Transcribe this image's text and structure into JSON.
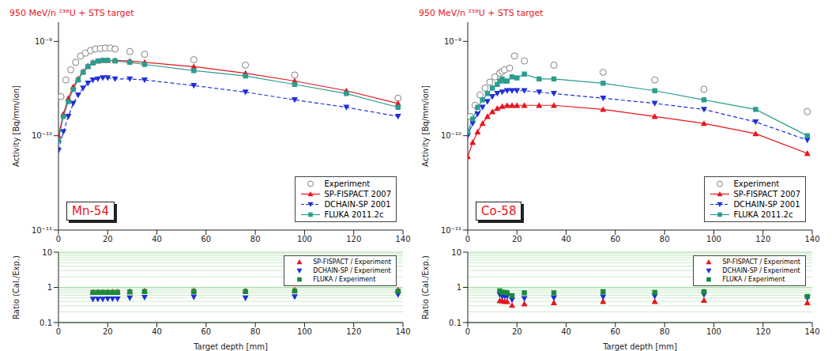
{
  "chart_data": [
    {
      "type": "line",
      "title": "950 MeV/n ²³⁸U + STS target",
      "annotation": "Mn-54",
      "ylabel": "Activity [Bq/mm/ion]",
      "xlim": [
        0,
        140
      ],
      "xticks": [
        0,
        20,
        40,
        60,
        80,
        100,
        120,
        140
      ],
      "ylim": [
        1e-11,
        1.6e-09
      ],
      "yticks": [
        {
          "value": 1e-11,
          "label": "10⁻¹¹"
        },
        {
          "value": 1e-10,
          "label": "10⁻¹⁰"
        },
        {
          "value": 1e-09,
          "label": "10⁻⁹"
        }
      ],
      "log": "y",
      "grid": false,
      "legend": "lower right",
      "series": [
        {
          "name": "Experiment",
          "color": "#808080",
          "marker": "circle",
          "line_style": "none",
          "x": [
            1,
            3,
            5,
            7,
            9,
            11,
            13,
            15,
            17,
            19,
            21,
            23,
            29,
            35,
            55,
            76,
            96,
            138
          ],
          "values": [
            2.6e-10,
            3.9e-10,
            5e-10,
            6e-10,
            7e-10,
            7.5e-10,
            8e-10,
            8.3e-10,
            8.4e-10,
            8.5e-10,
            8.5e-10,
            8.3e-10,
            7.8e-10,
            7.3e-10,
            6.4e-10,
            5.6e-10,
            4.4e-10,
            2.5e-10
          ]
        },
        {
          "name": "SP-FISPACT 2007",
          "color": "#e8141c",
          "marker": "triangle",
          "line_style": "solid",
          "x": [
            0,
            2,
            4,
            6,
            8,
            10,
            12,
            14,
            16,
            18,
            20,
            23,
            29,
            35,
            55,
            76,
            96,
            117,
            138
          ],
          "values": [
            1e-10,
            1.7e-10,
            2.5e-10,
            3.3e-10,
            4e-10,
            4.8e-10,
            5.5e-10,
            6e-10,
            6.2e-10,
            6.3e-10,
            6.3e-10,
            6.3e-10,
            6.2e-10,
            6e-10,
            5.4e-10,
            4.6e-10,
            3.8e-10,
            3e-10,
            2.2e-10
          ]
        },
        {
          "name": "DCHAIN-SP 2001",
          "color": "#1f2fd8",
          "marker": "triangle-down",
          "line_style": "dashed",
          "x": [
            0,
            2,
            4,
            6,
            8,
            10,
            12,
            14,
            16,
            18,
            20,
            23,
            29,
            35,
            55,
            76,
            96,
            117,
            138
          ],
          "values": [
            7e-11,
            1.1e-10,
            1.6e-10,
            2.2e-10,
            2.7e-10,
            3.2e-10,
            3.6e-10,
            3.9e-10,
            4e-10,
            4.1e-10,
            4.1e-10,
            4e-10,
            4e-10,
            3.9e-10,
            3.4e-10,
            2.9e-10,
            2.4e-10,
            2e-10,
            1.6e-10
          ]
        },
        {
          "name": "FLUKA 2011.2c",
          "color": "#2a9d8f",
          "marker": "square",
          "line_style": "solid",
          "x": [
            0,
            2,
            4,
            6,
            8,
            10,
            12,
            14,
            16,
            18,
            20,
            23,
            29,
            35,
            55,
            76,
            96,
            117,
            138
          ],
          "values": [
            9e-11,
            1.6e-10,
            2.3e-10,
            3.1e-10,
            3.9e-10,
            4.7e-10,
            5.4e-10,
            5.9e-10,
            6.2e-10,
            6.3e-10,
            6.3e-10,
            6.2e-10,
            6e-10,
            5.7e-10,
            4.9e-10,
            4.3e-10,
            3.5e-10,
            2.8e-10,
            2e-10
          ]
        }
      ]
    },
    {
      "type": "scatter",
      "xlabel": "Target depth [mm]",
      "ylabel": "Ratio (Cal./Exp.)",
      "xlim": [
        0,
        140
      ],
      "xticks": [
        0,
        20,
        40,
        60,
        80,
        100,
        120,
        140
      ],
      "ylim": [
        0.1,
        10
      ],
      "yticks": [
        0.1,
        1,
        10
      ],
      "log": "y",
      "grid": true,
      "legend": "upper right",
      "series": [
        {
          "name": "SP-FISPACT / Experiment",
          "color": "#e8141c",
          "marker": "triangle",
          "line_style": "none",
          "x": [
            14,
            16,
            18,
            20,
            22,
            24,
            29,
            35,
            55,
            76,
            96,
            138
          ],
          "values": [
            0.72,
            0.73,
            0.73,
            0.73,
            0.74,
            0.75,
            0.77,
            0.8,
            0.82,
            0.8,
            0.84,
            0.85
          ]
        },
        {
          "name": "DCHAIN-SP / Experiment",
          "color": "#1f2fd8",
          "marker": "triangle-down",
          "line_style": "none",
          "x": [
            14,
            16,
            18,
            20,
            22,
            24,
            29,
            35,
            55,
            76,
            96,
            138
          ],
          "values": [
            0.46,
            0.46,
            0.46,
            0.47,
            0.47,
            0.47,
            0.5,
            0.52,
            0.53,
            0.5,
            0.54,
            0.62
          ]
        },
        {
          "name": "FLUKA / Experiment",
          "color": "#1a8a3a",
          "marker": "square",
          "line_style": "none",
          "x": [
            14,
            16,
            18,
            20,
            22,
            24,
            29,
            35,
            55,
            76,
            96,
            138
          ],
          "values": [
            0.72,
            0.72,
            0.72,
            0.72,
            0.72,
            0.72,
            0.74,
            0.76,
            0.76,
            0.76,
            0.79,
            0.78
          ]
        }
      ]
    },
    {
      "type": "line",
      "title": "950 MeV/n ²³⁸U + STS target",
      "annotation": "Co-58",
      "ylabel": "Activity [Bq/mm/ion]",
      "xlim": [
        0,
        140
      ],
      "xticks": [
        0,
        20,
        40,
        60,
        80,
        100,
        120,
        140
      ],
      "ylim": [
        1e-11,
        1.6e-09
      ],
      "yticks": [
        {
          "value": 1e-11,
          "label": "10⁻¹¹"
        },
        {
          "value": 1e-10,
          "label": "10⁻¹⁰"
        },
        {
          "value": 1e-09,
          "label": "10⁻⁹"
        }
      ],
      "log": "y",
      "grid": false,
      "legend": "lower right",
      "series": [
        {
          "name": "Experiment",
          "color": "#808080",
          "marker": "circle",
          "line_style": "none",
          "x": [
            1,
            3,
            5,
            7,
            9,
            11,
            13,
            14,
            15,
            17,
            19,
            23,
            35,
            55,
            76,
            96,
            138
          ],
          "values": [
            1.6e-10,
            2.1e-10,
            2.7e-10,
            3.2e-10,
            3.7e-10,
            4.2e-10,
            4.6e-10,
            4.8e-10,
            5e-10,
            5.2e-10,
            7e-10,
            6.2e-10,
            5.6e-10,
            4.7e-10,
            3.9e-10,
            3.1e-10,
            1.8e-10
          ]
        },
        {
          "name": "SP-FISPACT 2007",
          "color": "#e8141c",
          "marker": "triangle",
          "line_style": "solid",
          "x": [
            0,
            2,
            4,
            6,
            8,
            10,
            12,
            14,
            16,
            18,
            20,
            23,
            29,
            35,
            55,
            76,
            96,
            117,
            138
          ],
          "values": [
            6e-11,
            8.5e-11,
            1.1e-10,
            1.35e-10,
            1.6e-10,
            1.8e-10,
            1.95e-10,
            2.05e-10,
            2.1e-10,
            2.1e-10,
            2.1e-10,
            2.1e-10,
            2.1e-10,
            2.1e-10,
            1.9e-10,
            1.6e-10,
            1.35e-10,
            1.05e-10,
            6.5e-11
          ]
        },
        {
          "name": "DCHAIN-SP 2001",
          "color": "#1f2fd8",
          "marker": "triangle-down",
          "line_style": "dashed",
          "x": [
            0,
            2,
            4,
            6,
            8,
            10,
            12,
            14,
            16,
            18,
            20,
            23,
            29,
            35,
            55,
            76,
            96,
            117,
            138
          ],
          "values": [
            1e-10,
            1.35e-10,
            1.7e-10,
            2e-10,
            2.3e-10,
            2.6e-10,
            2.8e-10,
            2.9e-10,
            3e-10,
            3e-10,
            3e-10,
            3e-10,
            2.9e-10,
            2.8e-10,
            2.5e-10,
            2.2e-10,
            1.9e-10,
            1.4e-10,
            9e-11
          ]
        },
        {
          "name": "FLUKA 2011.2c",
          "color": "#2a9d8f",
          "marker": "square",
          "line_style": "solid",
          "x": [
            0,
            2,
            4,
            6,
            8,
            10,
            12,
            13,
            14,
            15,
            16,
            18,
            20,
            23,
            29,
            35,
            55,
            76,
            96,
            117,
            138
          ],
          "values": [
            1.1e-10,
            1.5e-10,
            2e-10,
            2.4e-10,
            2.8e-10,
            3.2e-10,
            3.5e-10,
            3.8e-10,
            4e-10,
            3.8e-10,
            3.8e-10,
            4.2e-10,
            4.1e-10,
            4.5e-10,
            4e-10,
            4e-10,
            3.6e-10,
            3e-10,
            2.4e-10,
            1.9e-10,
            1e-10
          ]
        }
      ]
    },
    {
      "type": "scatter",
      "xlabel": "Target depth [mm]",
      "ylabel": "Ratio (Cal./Exp.)",
      "xlim": [
        0,
        140
      ],
      "xticks": [
        0,
        20,
        40,
        60,
        80,
        100,
        120,
        140
      ],
      "ylim": [
        0.1,
        10
      ],
      "yticks": [
        0.1,
        1,
        10
      ],
      "log": "y",
      "grid": true,
      "legend": "upper right",
      "series": [
        {
          "name": "SP-FISPACT / Experiment",
          "color": "#e8141c",
          "marker": "triangle",
          "line_style": "none",
          "x": [
            13,
            14,
            15,
            16,
            18,
            23,
            35,
            55,
            76,
            96,
            138
          ],
          "values": [
            0.42,
            0.42,
            0.4,
            0.4,
            0.31,
            0.34,
            0.37,
            0.4,
            0.4,
            0.43,
            0.37
          ]
        },
        {
          "name": "DCHAIN-SP / Experiment",
          "color": "#1f2fd8",
          "marker": "triangle-down",
          "line_style": "none",
          "x": [
            13,
            14,
            15,
            16,
            18,
            23,
            35,
            55,
            76,
            96,
            138
          ],
          "values": [
            0.62,
            0.55,
            0.56,
            0.55,
            0.44,
            0.48,
            0.5,
            0.53,
            0.56,
            0.62,
            0.5
          ]
        },
        {
          "name": "FLUKA / Experiment",
          "color": "#1a8a3a",
          "marker": "square",
          "line_style": "none",
          "x": [
            13,
            14,
            15,
            16,
            18,
            23,
            35,
            55,
            76,
            96,
            138
          ],
          "values": [
            0.8,
            0.72,
            0.72,
            0.7,
            0.58,
            0.7,
            0.7,
            0.75,
            0.72,
            0.75,
            0.55
          ]
        }
      ]
    }
  ]
}
